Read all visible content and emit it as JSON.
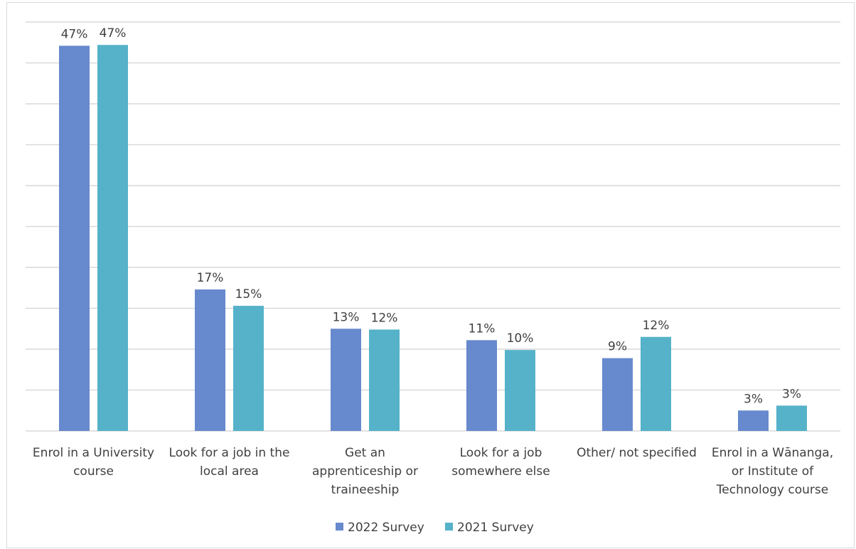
{
  "chart_data": {
    "type": "bar",
    "title": "",
    "xlabel": "",
    "ylabel": "",
    "ylim": [
      0,
      50
    ],
    "grid": true,
    "legend_position": "bottom",
    "categories": [
      [
        "Enrol in a University",
        "course"
      ],
      [
        "Look for a job in the",
        "local area"
      ],
      [
        "Get an",
        "apprenticeship or",
        "traineeship"
      ],
      [
        "Look for a job",
        "somewhere else"
      ],
      [
        "Other/ not specified"
      ],
      [
        "Enrol in a Wānanga,",
        "or Institute of",
        "Technology course"
      ]
    ],
    "series": [
      {
        "name": "2022 Survey",
        "color": "#6789cd",
        "values": [
          47,
          17,
          13,
          11,
          9,
          3
        ],
        "labels": [
          "47%",
          "17%",
          "13%",
          "11%",
          "9%",
          "3%"
        ]
      },
      {
        "name": "2021 Survey",
        "color": "#55b2c9",
        "values": [
          47,
          15,
          12,
          10,
          12,
          3
        ],
        "labels": [
          "47%",
          "15%",
          "12%",
          "10%",
          "12%",
          "3%"
        ]
      }
    ],
    "bar_heights": [
      [
        47.1,
        17.3,
        12.5,
        11.1,
        8.9,
        2.5
      ],
      [
        47.2,
        15.3,
        12.4,
        9.9,
        11.5,
        3.1
      ]
    ]
  }
}
